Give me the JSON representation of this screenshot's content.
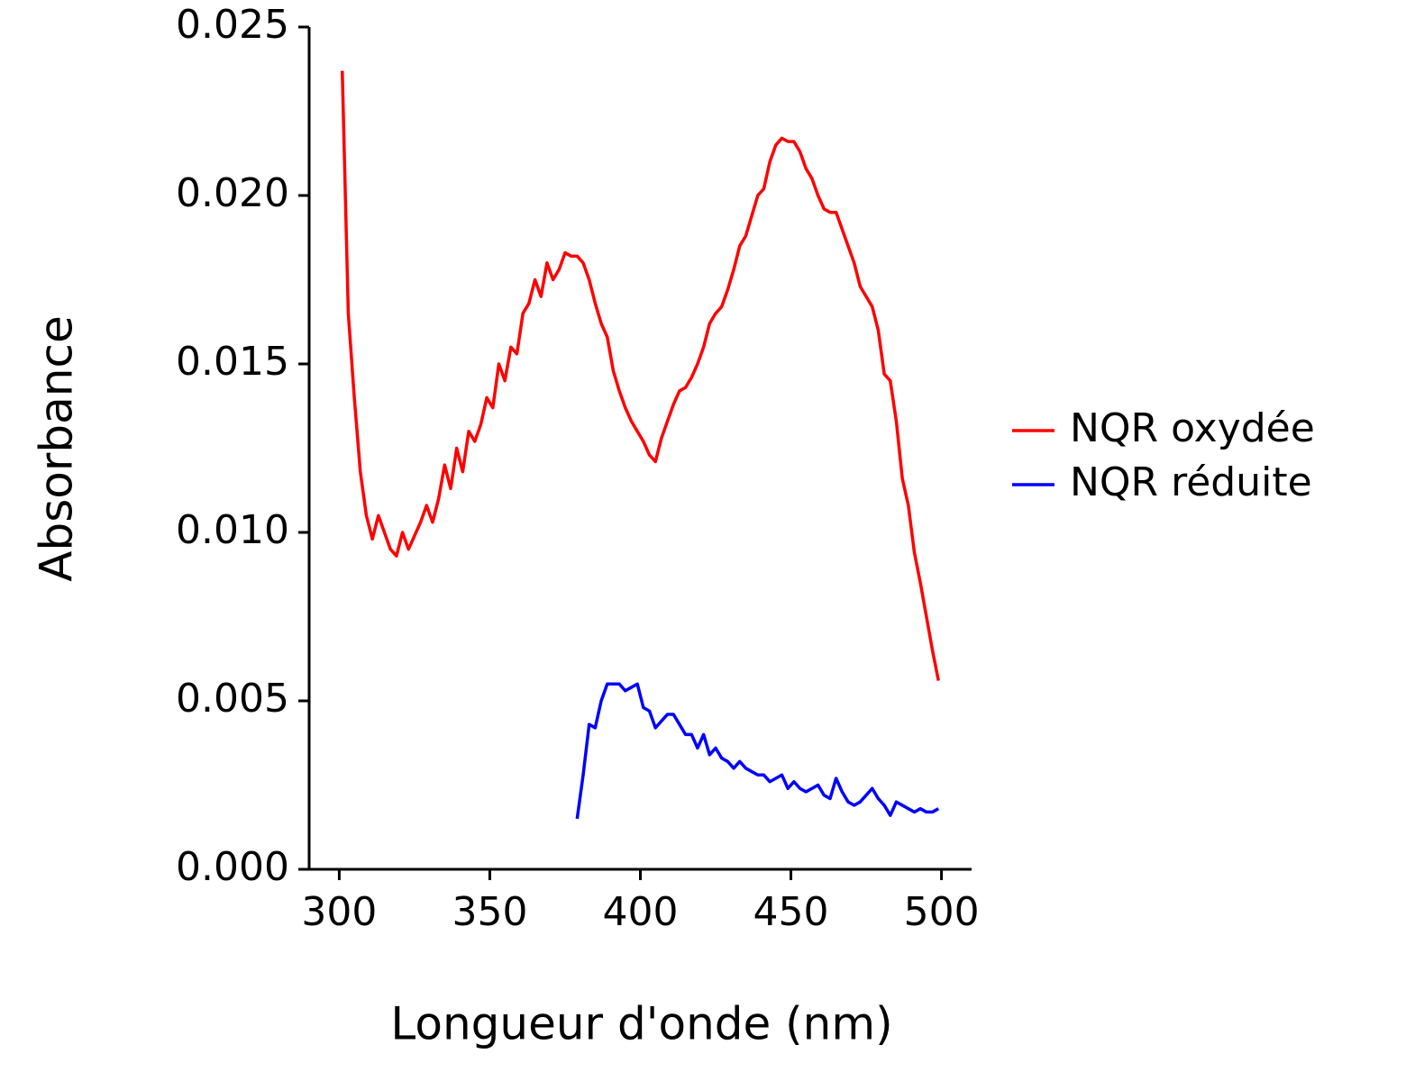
{
  "chart_data": {
    "type": "line",
    "xlabel": "Longueur d'onde (nm)",
    "ylabel": "Absorbance",
    "x": [
      301,
      303,
      305,
      307,
      309,
      311,
      313,
      315,
      317,
      319,
      321,
      323,
      325,
      327,
      329,
      331,
      333,
      335,
      337,
      339,
      341,
      343,
      345,
      347,
      349,
      351,
      353,
      355,
      357,
      359,
      361,
      363,
      365,
      367,
      369,
      371,
      373,
      375,
      377,
      379,
      381,
      383,
      385,
      387,
      389,
      391,
      393,
      395,
      397,
      399,
      401,
      403,
      405,
      407,
      409,
      411,
      413,
      415,
      417,
      419,
      421,
      423,
      425,
      427,
      429,
      431,
      433,
      435,
      437,
      439,
      441,
      443,
      445,
      447,
      449,
      451,
      453,
      455,
      457,
      459,
      461,
      463,
      465,
      467,
      469,
      471,
      473,
      475,
      477,
      479,
      481,
      483,
      485,
      487,
      489,
      491,
      493,
      495,
      497,
      499
    ],
    "series": [
      {
        "name": "NQR oxydée",
        "color": "#ff0000",
        "values": [
          0.0237,
          0.0165,
          0.014,
          0.0118,
          0.0105,
          0.0098,
          0.0105,
          0.01,
          0.0095,
          0.0093,
          0.01,
          0.0095,
          0.0099,
          0.0103,
          0.0108,
          0.0103,
          0.011,
          0.012,
          0.0113,
          0.0125,
          0.0118,
          0.013,
          0.0127,
          0.0132,
          0.014,
          0.0137,
          0.015,
          0.0145,
          0.0155,
          0.0153,
          0.0165,
          0.0168,
          0.0175,
          0.017,
          0.018,
          0.0175,
          0.0178,
          0.0183,
          0.0182,
          0.0182,
          0.018,
          0.0175,
          0.0168,
          0.0162,
          0.0158,
          0.0148,
          0.0142,
          0.0137,
          0.0133,
          0.013,
          0.0127,
          0.0123,
          0.0121,
          0.0128,
          0.0133,
          0.0138,
          0.0142,
          0.0143,
          0.0146,
          0.015,
          0.0155,
          0.0162,
          0.0165,
          0.0167,
          0.0172,
          0.0178,
          0.0185,
          0.0188,
          0.0194,
          0.02,
          0.0202,
          0.021,
          0.0215,
          0.0217,
          0.0216,
          0.0216,
          0.0213,
          0.0208,
          0.0205,
          0.02,
          0.0196,
          0.0195,
          0.0195,
          0.019,
          0.0185,
          0.018,
          0.0173,
          0.017,
          0.0167,
          0.016,
          0.0147,
          0.0145,
          0.0133,
          0.0116,
          0.0108,
          0.0094,
          0.0085,
          0.0075,
          0.0065,
          0.0056
        ]
      },
      {
        "name": "NQR réduite",
        "color": "#0000ff",
        "values": [
          null,
          null,
          null,
          null,
          null,
          null,
          null,
          null,
          null,
          null,
          null,
          null,
          null,
          null,
          null,
          null,
          null,
          null,
          null,
          null,
          null,
          null,
          null,
          null,
          null,
          null,
          null,
          null,
          null,
          null,
          null,
          null,
          null,
          null,
          null,
          null,
          null,
          null,
          null,
          0.0015,
          0.0028,
          0.0043,
          0.0042,
          0.005,
          0.0055,
          0.0055,
          0.0055,
          0.0053,
          0.0054,
          0.0055,
          0.0048,
          0.0047,
          0.0042,
          0.0044,
          0.0046,
          0.0046,
          0.0043,
          0.004,
          0.004,
          0.0036,
          0.004,
          0.0034,
          0.0036,
          0.0033,
          0.0032,
          0.003,
          0.0032,
          0.003,
          0.0029,
          0.0028,
          0.0028,
          0.0026,
          0.0027,
          0.0028,
          0.0024,
          0.0026,
          0.0024,
          0.0023,
          0.0024,
          0.0025,
          0.0022,
          0.0021,
          0.0027,
          0.0023,
          0.002,
          0.0019,
          0.002,
          0.0022,
          0.0024,
          0.0021,
          0.0019,
          0.0016,
          0.002,
          0.0019,
          0.0018,
          0.0017,
          0.0018,
          0.0017,
          0.0017,
          0.0018
        ]
      }
    ],
    "xlim": [
      290,
      510
    ],
    "xticks": [
      300,
      350,
      400,
      450,
      500
    ],
    "ylim": [
      0,
      0.025
    ],
    "yticks": [
      {
        "value": 0,
        "label": "0.000"
      },
      {
        "value": 0.005,
        "label": "0.005"
      },
      {
        "value": 0.01,
        "label": "0.010"
      },
      {
        "value": 0.015,
        "label": "0.015"
      },
      {
        "value": 0.02,
        "label": "0.020"
      },
      {
        "value": 0.025,
        "label": "0.025"
      }
    ],
    "grid": false,
    "legend": "right"
  }
}
